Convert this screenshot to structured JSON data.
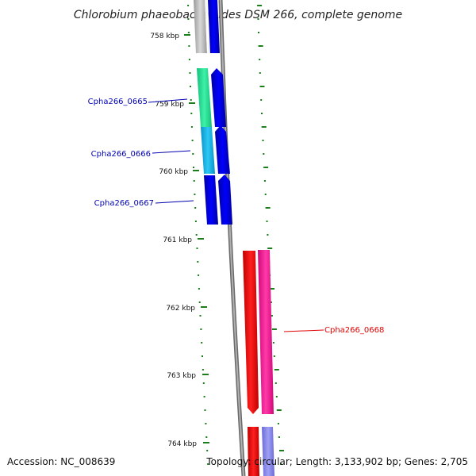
{
  "title": "Chlorobium phaeobacteroides DSM 266, complete genome",
  "accession": "Accession: NC_008639",
  "topology": "Topology: circular; Length: 3,133,902 bp; Genes: 2,705",
  "colors": {
    "backbone": "#8c8c8c",
    "tick": "#1a7f1a",
    "label_blue": "#0000b0",
    "label_red": "#e00000",
    "gene_blue": "#0000ff",
    "gene_green": "#22d890",
    "gene_cyan": "#13b4e8",
    "gene_red": "#ff0000",
    "gene_magenta": "#ff1493",
    "gene_lavender": "#8080e8",
    "gene_grey": "#b8b8b8"
  },
  "kbp_ticks": [
    "758 kbp",
    "759 kbp",
    "760 kbp",
    "761 kbp",
    "762 kbp",
    "763 kbp",
    "764 kbp"
  ],
  "genes": [
    {
      "label": "Cpha266_0665"
    },
    {
      "label": "Cpha266_0666"
    },
    {
      "label": "Cpha266_0667"
    },
    {
      "label": "Cpha266_0668"
    }
  ]
}
